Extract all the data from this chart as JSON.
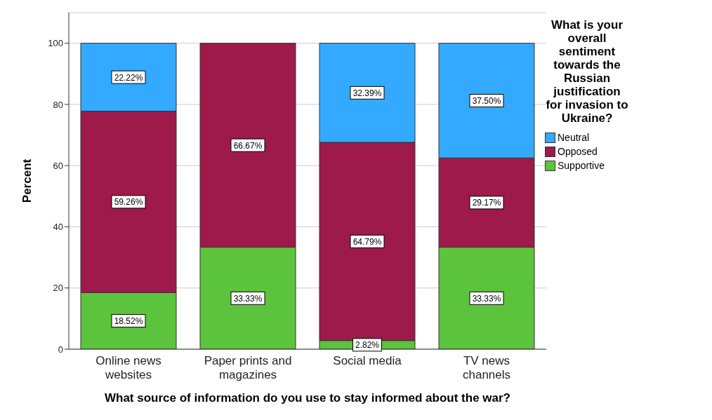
{
  "chart_data": {
    "type": "bar",
    "stacked": true,
    "xlabel": "What source of information do you use to stay informed about the war?",
    "ylabel": "Percent",
    "legend_title": "What is your overall sentiment towards the Russian justification for invasion to Ukraine?",
    "legend": "top right",
    "grid": "y",
    "ylim": [
      0,
      110
    ],
    "yticks": [
      0,
      20,
      40,
      60,
      80,
      100
    ],
    "categories": [
      "Online news websites",
      "Paper prints and magazines",
      "Social media",
      "TV news channels"
    ],
    "series": [
      {
        "name": "Supportive",
        "color": "#5cc43c",
        "values": [
          18.52,
          33.33,
          2.82,
          33.33
        ],
        "value_labels": [
          "18.52%",
          "33.33%",
          "2.82%",
          "33.33%"
        ]
      },
      {
        "name": "Opposed",
        "color": "#9e1a4b",
        "values": [
          59.26,
          66.67,
          64.79,
          29.17
        ],
        "value_labels": [
          "59.26%",
          "66.67%",
          "64.79%",
          "29.17%"
        ]
      },
      {
        "name": "Neutral",
        "color": "#33aaff",
        "values": [
          22.22,
          null,
          32.39,
          37.5
        ],
        "value_labels": [
          "22.22%",
          null,
          "32.39%",
          "37.50%"
        ]
      }
    ]
  }
}
